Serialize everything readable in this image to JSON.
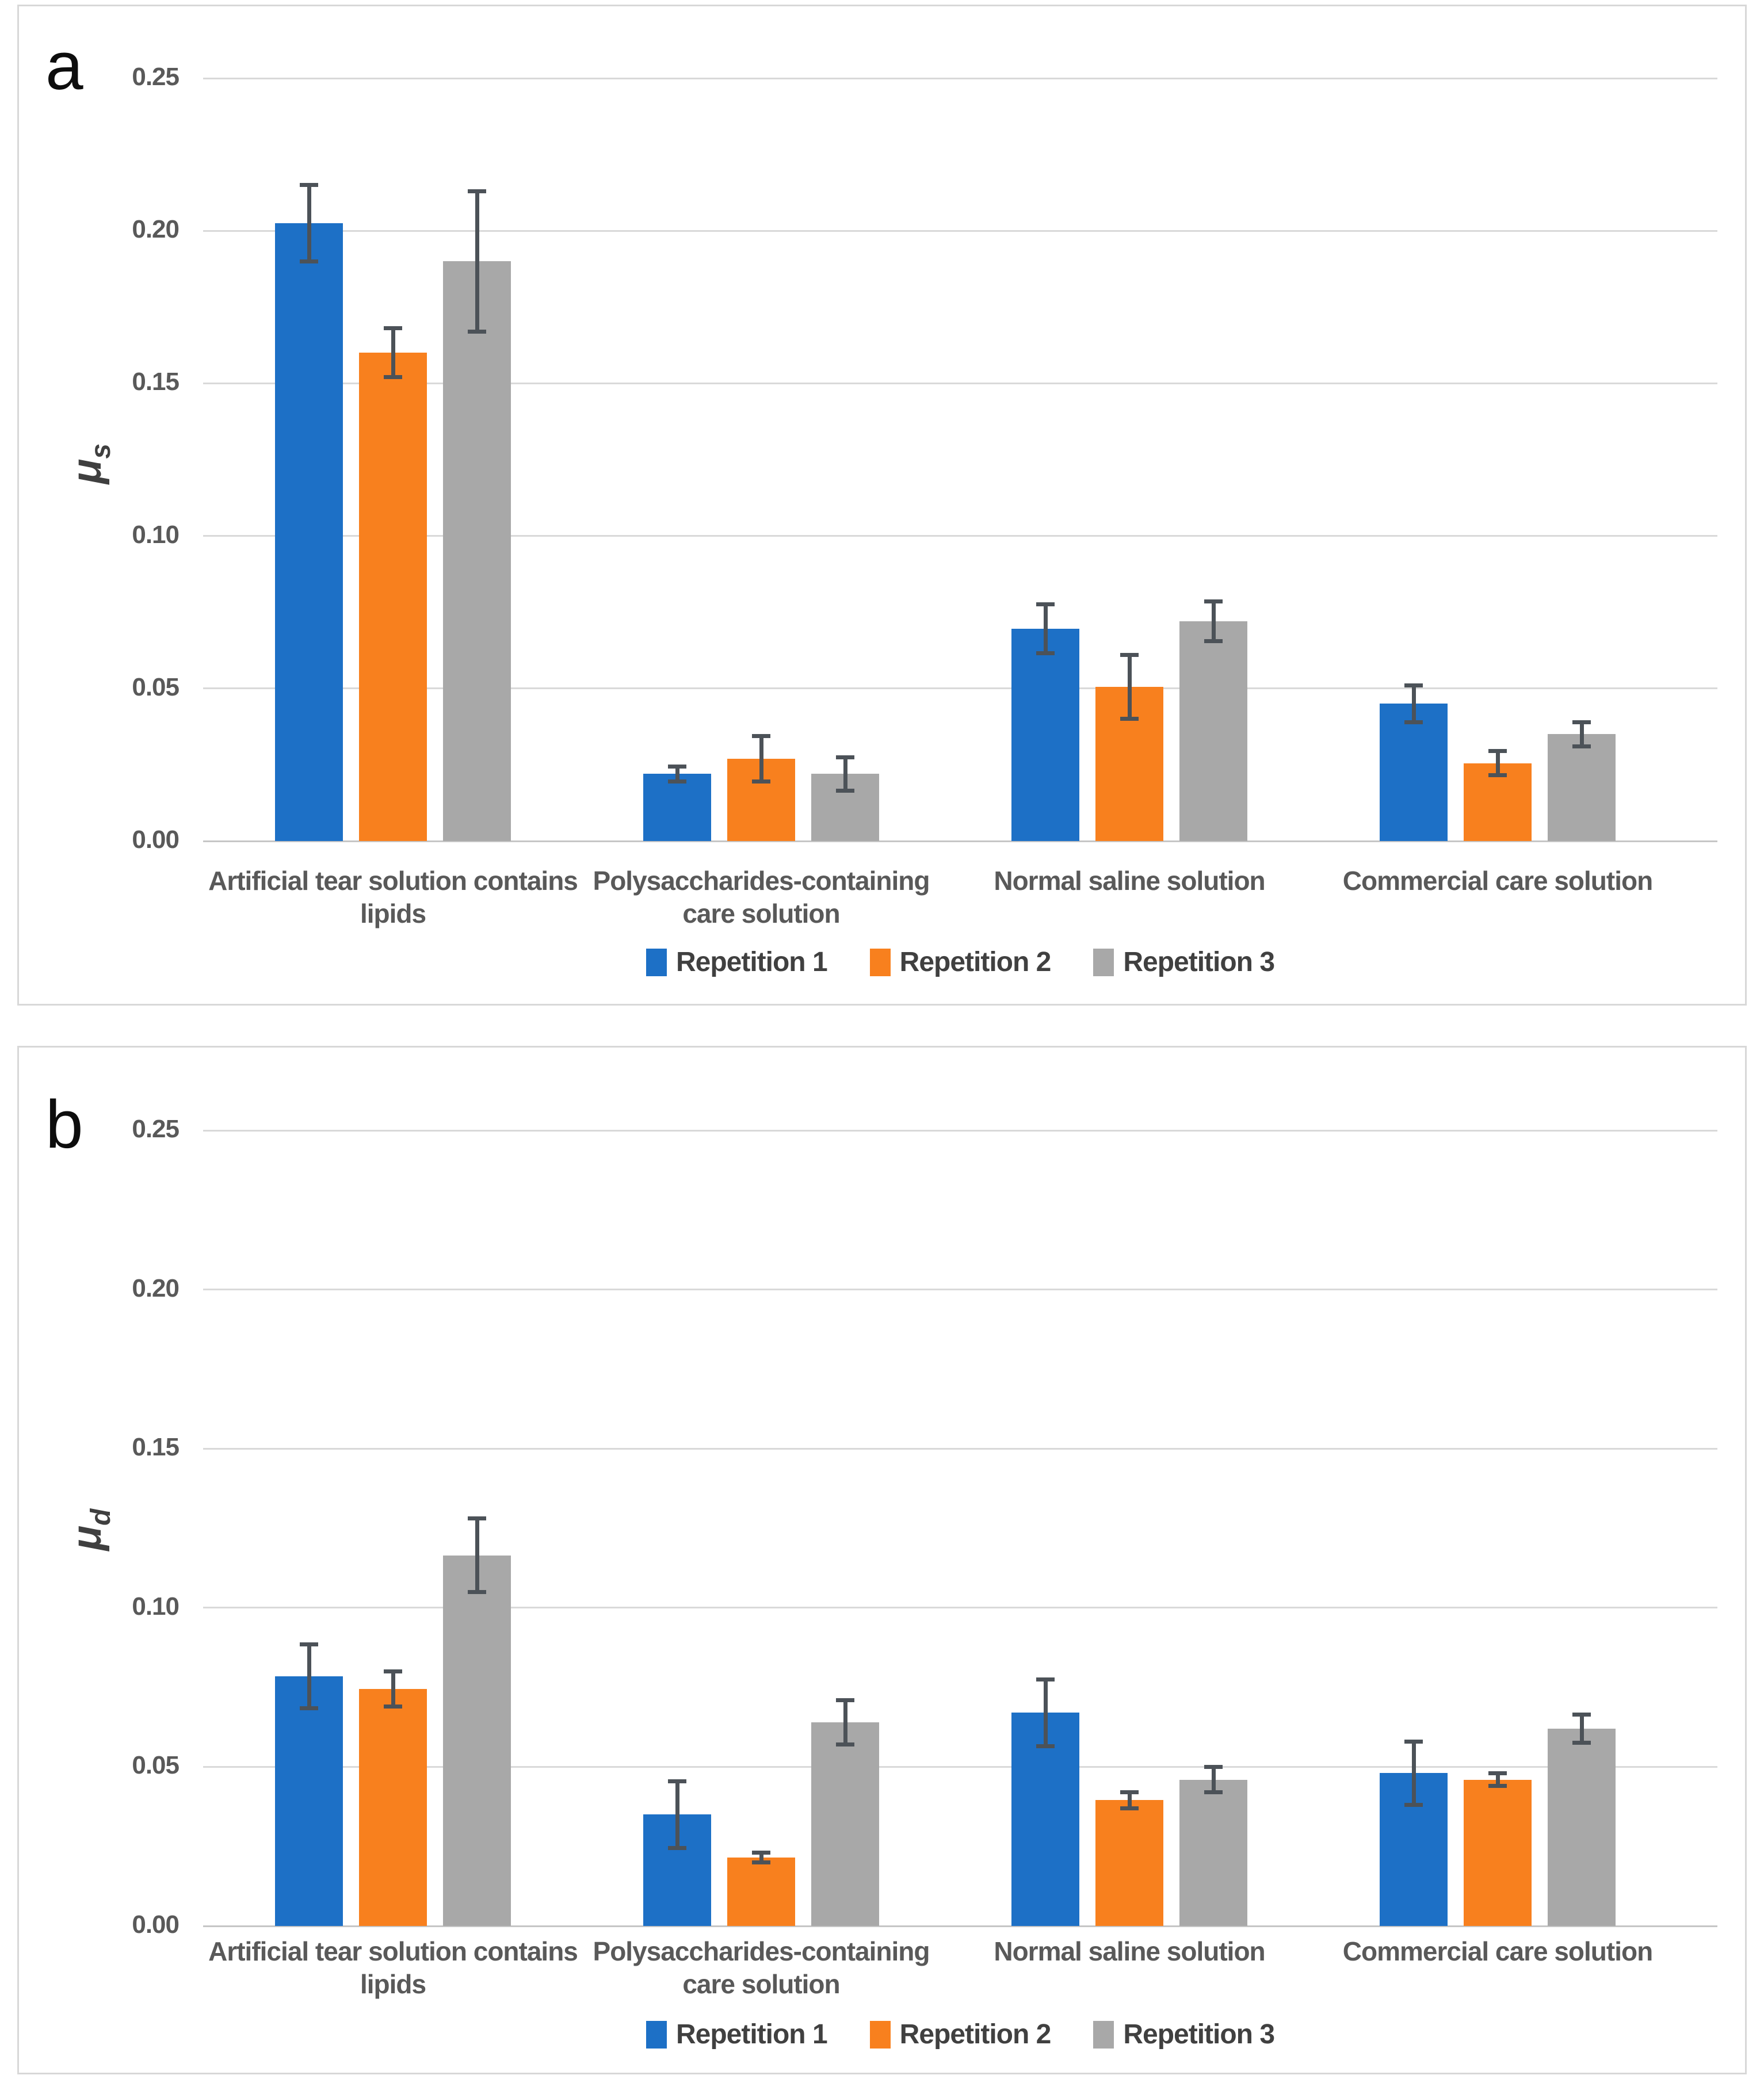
{
  "figure": {
    "panels": [
      {
        "label": "a"
      },
      {
        "label": "b"
      }
    ]
  },
  "colors": {
    "repetition1_blue": "#1D70C6",
    "repetition2_orange": "#F8801E",
    "repetition3_gray": "#A8A8A8",
    "error_bar": "#4C5258",
    "gridline": "#D9D9D9",
    "axis_text": "#595959"
  },
  "chart_data": [
    {
      "type": "bar",
      "panel_label": "a",
      "ylabel_symbol": "μ",
      "ylabel_subscript": "s",
      "ylim": [
        0,
        0.25
      ],
      "yticks": [
        "0.00",
        "0.05",
        "0.10",
        "0.15",
        "0.20",
        "0.25"
      ],
      "grid": "horizontal-only",
      "legend_position": "bottom-center",
      "categories": [
        "Artificial tear solution contains lipids",
        "Polysaccharides-containing care solution",
        "Normal saline solution",
        "Commercial care solution"
      ],
      "series": [
        {
          "name": "Repetition 1",
          "color": "#1D70C6",
          "values": [
            0.2025,
            0.022,
            0.0695,
            0.045
          ],
          "errors": [
            0.0125,
            0.0025,
            0.008,
            0.006
          ]
        },
        {
          "name": "Repetition 2",
          "color": "#F8801E",
          "values": [
            0.16,
            0.027,
            0.0505,
            0.0255
          ],
          "errors": [
            0.008,
            0.0075,
            0.0105,
            0.004
          ]
        },
        {
          "name": "Repetition 3",
          "color": "#A8A8A8",
          "values": [
            0.19,
            0.022,
            0.072,
            0.035
          ],
          "errors": [
            0.023,
            0.0055,
            0.0065,
            0.004
          ]
        }
      ]
    },
    {
      "type": "bar",
      "panel_label": "b",
      "ylabel_symbol": "μ",
      "ylabel_subscript": "d",
      "ylim": [
        0,
        0.25
      ],
      "yticks": [
        "0.00",
        "0.05",
        "0.10",
        "0.15",
        "0.20",
        "0.25"
      ],
      "grid": "horizontal-only",
      "legend_position": "bottom-center",
      "categories": [
        "Artificial tear solution contains lipids",
        "Polysaccharides-containing care solution",
        "Normal saline solution",
        "Commercial care solution"
      ],
      "series": [
        {
          "name": "Repetition 1",
          "color": "#1D70C6",
          "values": [
            0.0785,
            0.035,
            0.067,
            0.048
          ],
          "errors": [
            0.01,
            0.0105,
            0.0105,
            0.01
          ]
        },
        {
          "name": "Repetition 2",
          "color": "#F8801E",
          "values": [
            0.0745,
            0.0215,
            0.0395,
            0.046
          ],
          "errors": [
            0.0055,
            0.0015,
            0.0025,
            0.002
          ]
        },
        {
          "name": "Repetition 3",
          "color": "#A8A8A8",
          "values": [
            0.1165,
            0.064,
            0.046,
            0.062
          ],
          "errors": [
            0.0115,
            0.007,
            0.004,
            0.0045
          ]
        }
      ]
    }
  ]
}
